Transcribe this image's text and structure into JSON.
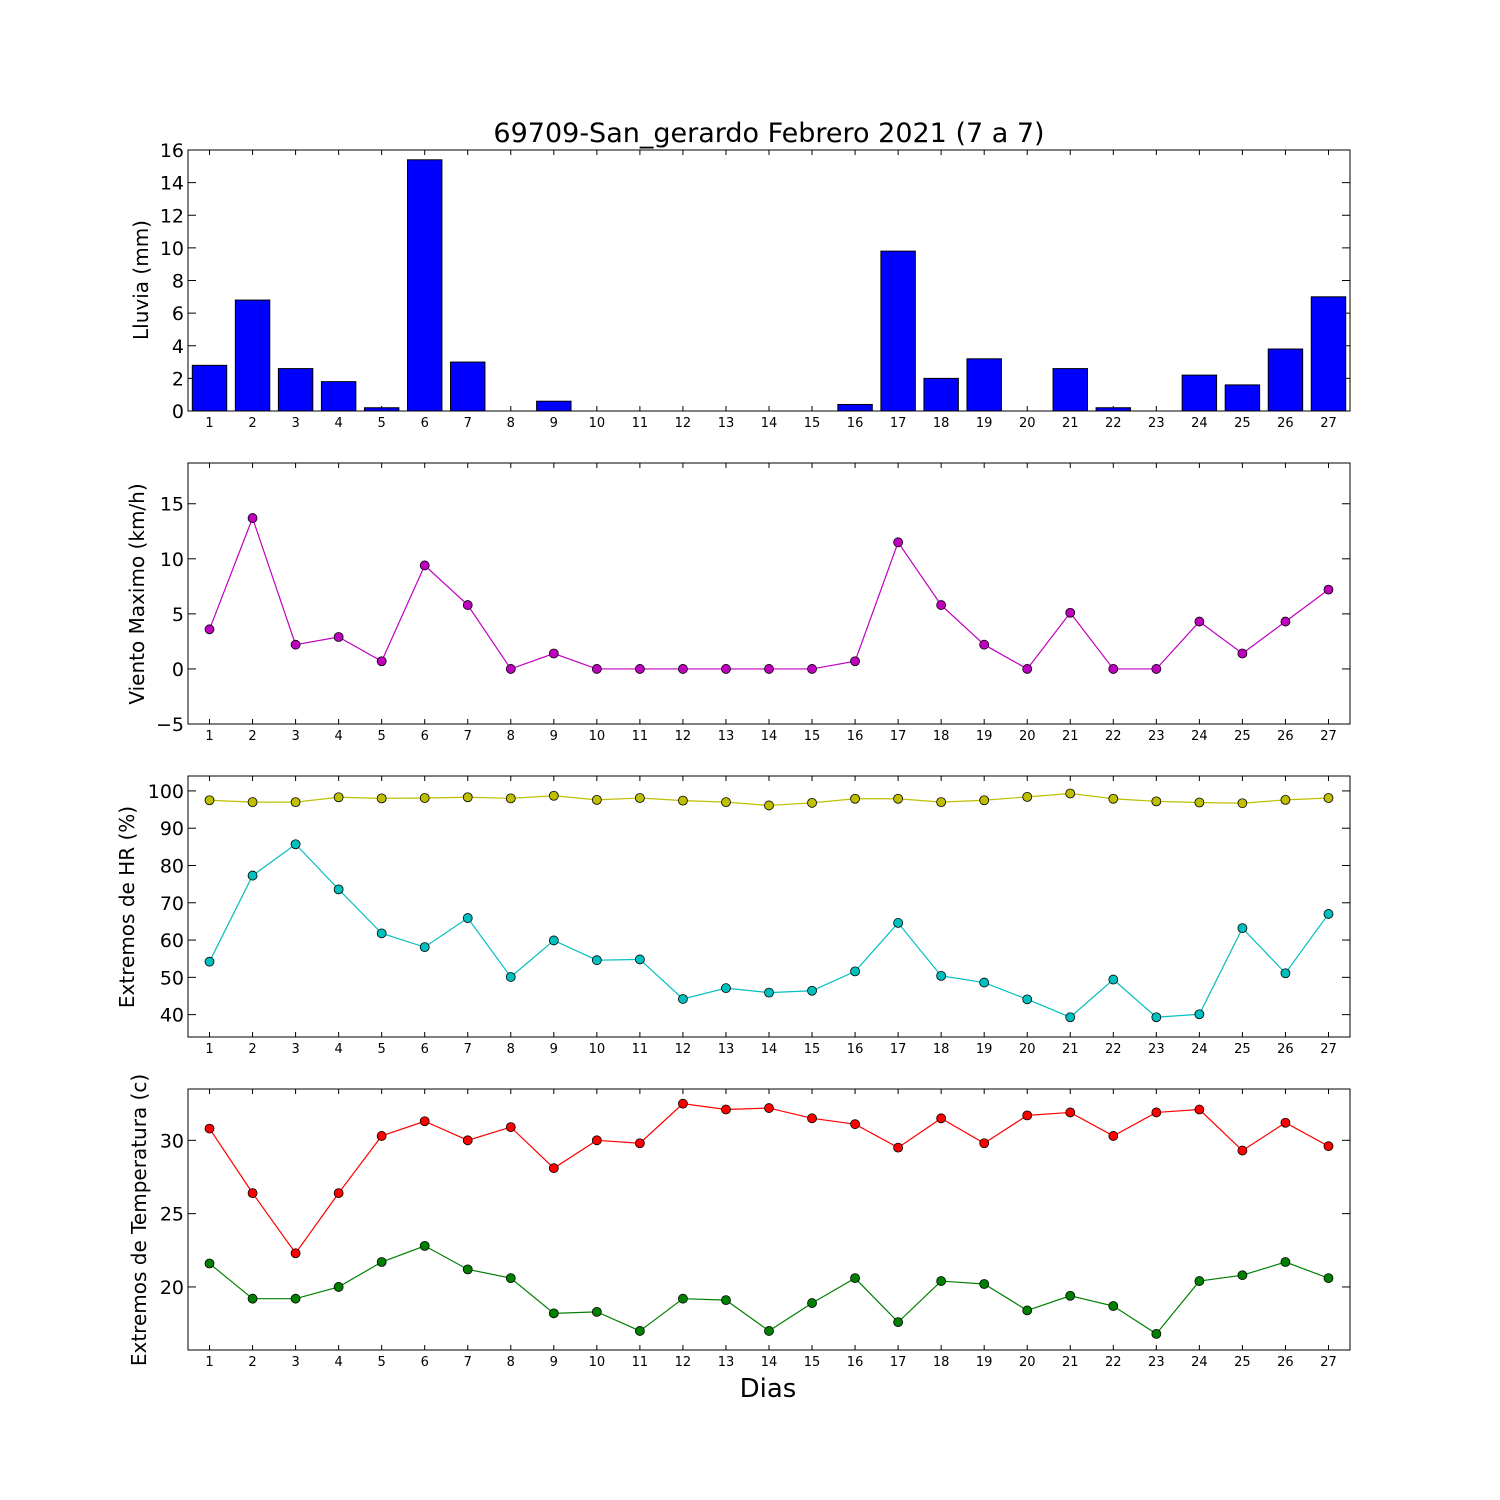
{
  "title": "69709-San_gerardo Febrero 2021  (7 a 7)",
  "colors": {
    "lluvia": "#0000ff",
    "viento": "#bf00bf",
    "hr_max": "#bfbf00",
    "hr_min": "#00bfbf",
    "temp_max": "#ff0000",
    "temp_min": "#008000"
  },
  "chart_data": [
    {
      "type": "bar",
      "categories": [
        1,
        2,
        3,
        4,
        5,
        6,
        7,
        8,
        9,
        10,
        11,
        12,
        13,
        14,
        15,
        16,
        17,
        18,
        19,
        20,
        21,
        22,
        23,
        24,
        25,
        26,
        27
      ],
      "series": [
        {
          "values": [
            2.8,
            6.8,
            2.6,
            1.8,
            0.2,
            15.4,
            3.0,
            0,
            0.6,
            0,
            0,
            0,
            0,
            0,
            0,
            0.4,
            9.8,
            2.0,
            3.2,
            0,
            2.6,
            0.2,
            0,
            2.2,
            1.6,
            3.8,
            7.0
          ]
        }
      ],
      "title": "",
      "xlabel": "",
      "ylabel": "Lluvia (mm)",
      "ylim": [
        0,
        16
      ],
      "yticks": [
        0,
        2,
        4,
        6,
        8,
        10,
        12,
        14,
        16
      ]
    },
    {
      "type": "line",
      "categories": [
        1,
        2,
        3,
        4,
        5,
        6,
        7,
        8,
        9,
        10,
        11,
        12,
        13,
        14,
        15,
        16,
        17,
        18,
        19,
        20,
        21,
        22,
        23,
        24,
        25,
        26,
        27
      ],
      "series": [
        {
          "values": [
            3.6,
            13.7,
            2.2,
            2.9,
            0.7,
            9.4,
            5.8,
            0,
            1.4,
            0,
            0,
            0,
            0,
            0,
            0,
            0.7,
            11.5,
            5.8,
            2.2,
            0,
            5.1,
            0,
            0,
            4.3,
            1.4,
            4.3,
            7.2
          ]
        }
      ],
      "title": "",
      "xlabel": "",
      "ylabel": "Viento Maximo (km/h)",
      "ylim": [
        -5,
        18.7
      ],
      "yticks": [
        -5,
        0,
        5,
        10,
        15
      ]
    },
    {
      "type": "line",
      "categories": [
        1,
        2,
        3,
        4,
        5,
        6,
        7,
        8,
        9,
        10,
        11,
        12,
        13,
        14,
        15,
        16,
        17,
        18,
        19,
        20,
        21,
        22,
        23,
        24,
        25,
        26,
        27
      ],
      "series": [
        {
          "values": [
            97.5,
            97,
            97,
            98.3,
            98,
            98.1,
            98.3,
            98,
            98.7,
            97.6,
            98.1,
            97.4,
            97,
            96.1,
            96.8,
            97.9,
            97.9,
            97,
            97.5,
            98.4,
            99.3,
            97.9,
            97.2,
            96.9,
            96.7,
            97.6,
            98.1
          ]
        },
        {
          "values": [
            54.2,
            77.3,
            85.7,
            73.6,
            61.8,
            58.1,
            65.9,
            50.1,
            59.9,
            54.6,
            54.8,
            44.2,
            47.1,
            45.9,
            46.4,
            51.6,
            64.6,
            50.4,
            48.6,
            44.1,
            39.3,
            49.4,
            39.3,
            40.1,
            63.2,
            51.1,
            67
          ]
        }
      ],
      "title": "",
      "xlabel": "",
      "ylabel": "Extremos de HR (%)",
      "ylim": [
        34,
        104
      ],
      "yticks": [
        40,
        50,
        60,
        70,
        80,
        90,
        100
      ]
    },
    {
      "type": "line",
      "categories": [
        1,
        2,
        3,
        4,
        5,
        6,
        7,
        8,
        9,
        10,
        11,
        12,
        13,
        14,
        15,
        16,
        17,
        18,
        19,
        20,
        21,
        22,
        23,
        24,
        25,
        26,
        27
      ],
      "series": [
        {
          "values": [
            30.8,
            26.4,
            22.3,
            26.4,
            30.3,
            31.3,
            30,
            30.9,
            28.1,
            30,
            29.8,
            32.5,
            32.1,
            32.2,
            31.5,
            31.1,
            29.5,
            31.5,
            29.8,
            31.7,
            31.9,
            30.3,
            31.9,
            32.1,
            29.3,
            31.2,
            29.6
          ]
        },
        {
          "values": [
            21.6,
            19.2,
            19.2,
            20,
            21.7,
            22.8,
            21.2,
            20.6,
            18.2,
            18.3,
            17,
            19.2,
            19.1,
            17,
            18.9,
            20.6,
            17.6,
            20.4,
            20.2,
            18.4,
            19.4,
            18.7,
            16.8,
            20.4,
            20.8,
            21.7,
            20.6
          ]
        }
      ],
      "title": "",
      "xlabel": "Dias",
      "ylabel": "Extremos de Temperatura (c)",
      "ylim": [
        15.7,
        33.5
      ],
      "yticks": [
        20,
        25,
        30
      ]
    }
  ]
}
